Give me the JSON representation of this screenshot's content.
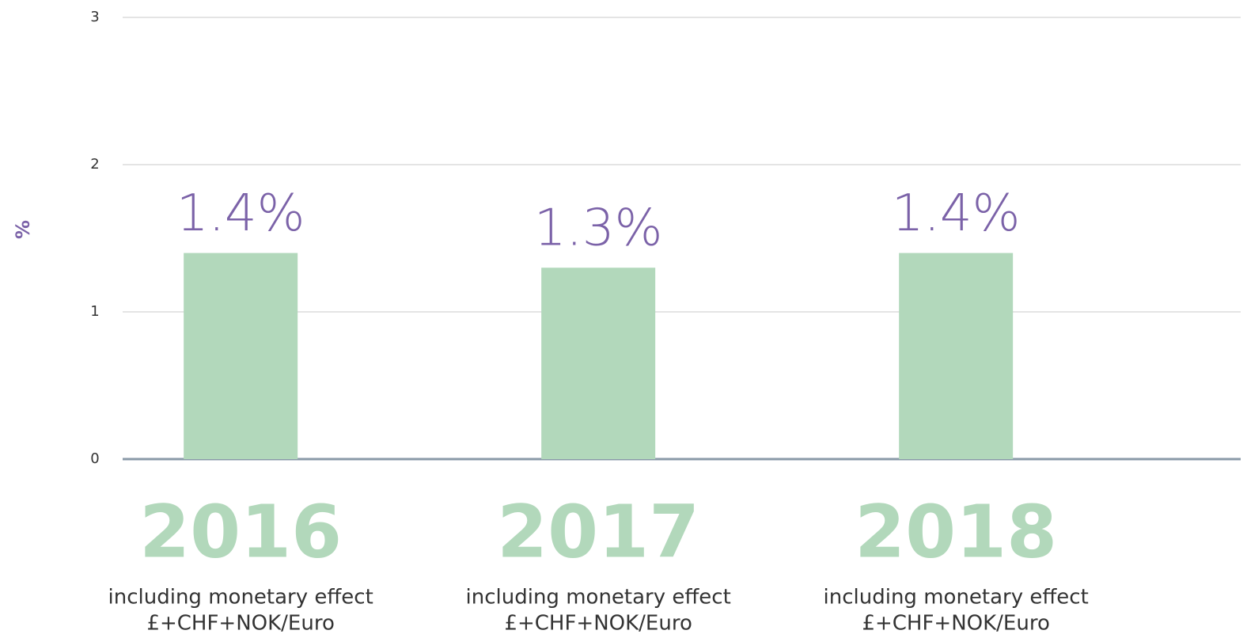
{
  "chart_data": {
    "type": "bar",
    "y_label": "%",
    "categories": [
      "2016",
      "2017",
      "2018"
    ],
    "category_notes": [
      [
        "including monetary effect",
        "£+CHF+NOK/Euro"
      ],
      [
        "including monetary effect",
        "£+CHF+NOK/Euro"
      ],
      [
        "including monetary effect",
        "£+CHF+NOK/Euro"
      ]
    ],
    "values": [
      1.4,
      1.3,
      1.4
    ],
    "value_labels": [
      "1.4%",
      "1.3%",
      "1.4%"
    ],
    "color": "#b2d8bb",
    "label_color": "#7b62a8",
    "ylim": [
      0,
      3
    ],
    "yticks": [
      0,
      1,
      2,
      3
    ],
    "grid": true
  }
}
